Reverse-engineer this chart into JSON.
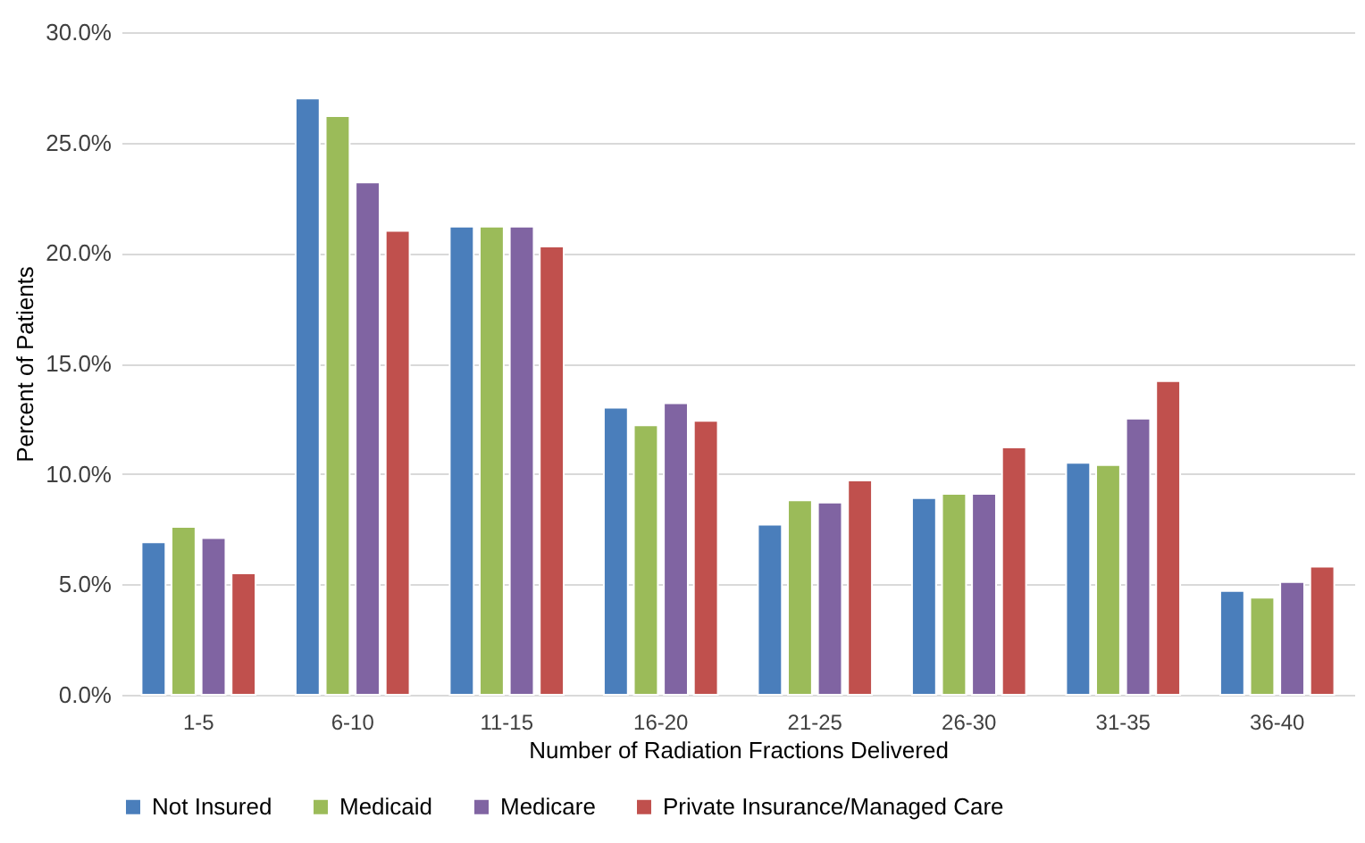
{
  "chart_data": {
    "type": "bar",
    "xlabel": "Number of Radiation Fractions Delivered",
    "ylabel": "Percent of Patients",
    "categories": [
      "1-5",
      "6-10",
      "11-15",
      "16-20",
      "21-25",
      "26-30",
      "31-35",
      "36-40"
    ],
    "series": [
      {
        "name": "Not Insured",
        "color": "#4a7ebb",
        "values": [
          6.9,
          27.0,
          21.2,
          13.0,
          7.7,
          8.9,
          10.5,
          4.7
        ]
      },
      {
        "name": "Medicaid",
        "color": "#9bbb59",
        "values": [
          7.6,
          26.2,
          21.2,
          12.2,
          8.8,
          9.1,
          10.4,
          4.4
        ]
      },
      {
        "name": "Medicare",
        "color": "#8064a2",
        "values": [
          7.1,
          23.2,
          21.2,
          13.2,
          8.7,
          9.1,
          12.5,
          5.1
        ]
      },
      {
        "name": "Private Insurance/Managed Care",
        "color": "#c0504d",
        "values": [
          5.5,
          21.0,
          20.3,
          12.4,
          9.7,
          11.2,
          14.2,
          5.8
        ]
      }
    ],
    "ylim": [
      0,
      30
    ],
    "yticks": [
      {
        "value": 0,
        "label": "0.0%"
      },
      {
        "value": 5,
        "label": "5.0%"
      },
      {
        "value": 10,
        "label": "10.0%"
      },
      {
        "value": 15,
        "label": "15.0%"
      },
      {
        "value": 20,
        "label": "20.0%"
      },
      {
        "value": 25,
        "label": "25.0%"
      },
      {
        "value": 30,
        "label": "30.0%"
      }
    ],
    "grid": "y",
    "legend": "bottom"
  }
}
